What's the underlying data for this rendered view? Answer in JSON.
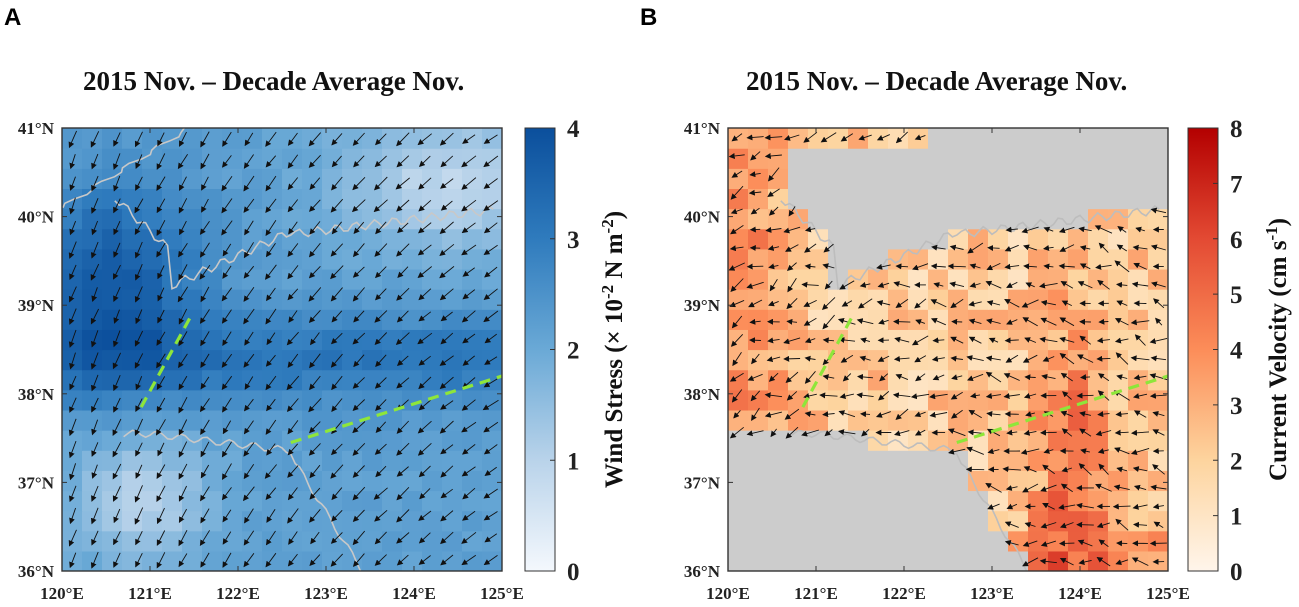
{
  "figure": {
    "panel_a_letter": "A",
    "panel_b_letter": "B"
  },
  "chart_data": [
    {
      "type": "heatmap",
      "subtype": "vector-field",
      "panel": "A",
      "title": "2015 Nov. – Decade Average Nov.",
      "xlabel": "",
      "ylabel": "",
      "xlim": [
        120,
        125
      ],
      "ylim": [
        36,
        41
      ],
      "x_ticks": [
        120,
        121,
        122,
        123,
        124,
        125
      ],
      "y_ticks": [
        36,
        37,
        38,
        39,
        40,
        41
      ],
      "x_tick_labels": [
        "120°E",
        "121°E",
        "122°E",
        "123°E",
        "124°E",
        "125°E"
      ],
      "y_tick_labels": [
        "36°N",
        "37°N",
        "38°N",
        "39°N",
        "40°N",
        "41°N"
      ],
      "colorbar": {
        "label": "Wind Stress (× 10⁻² N m⁻²)",
        "label_main": "Wind Stress (× 10",
        "label_exp1": "-2",
        "label_mid": " N m",
        "label_exp2": "-2",
        "label_end": ")",
        "range": [
          0,
          4
        ],
        "ticks": [
          0,
          1,
          2,
          3,
          4
        ],
        "colors": [
          "#f4f8fd",
          "#b9d3ea",
          "#6aa9d6",
          "#2f7bbd",
          "#0b4f9c"
        ]
      },
      "field_description": "wind stress anomaly, strongest (~3.5-4) over the northwest and central Bohai/Yellow Sea, weaker (~0.5-1.5) in the northeast and south-west; vectors point predominantly south-west",
      "transect_line": [
        [
          120.9,
          37.85
        ],
        [
          121.45,
          38.85
        ]
      ],
      "transect_line_2": [
        [
          122.6,
          37.45
        ],
        [
          125.0,
          38.2
        ]
      ],
      "transect_color": "#8ee63a",
      "background_color": "#ffffff"
    },
    {
      "type": "heatmap",
      "subtype": "vector-field",
      "panel": "B",
      "title": "2015 Nov. – Decade Average Nov.",
      "xlabel": "",
      "ylabel": "",
      "xlim": [
        120,
        125
      ],
      "ylim": [
        36,
        41
      ],
      "x_ticks": [
        120,
        121,
        122,
        123,
        124,
        125
      ],
      "y_ticks": [
        36,
        37,
        38,
        39,
        40,
        41
      ],
      "x_tick_labels": [
        "120°E",
        "121°E",
        "122°E",
        "123°E",
        "124°E",
        "125°E"
      ],
      "y_tick_labels": [
        "36°N",
        "37°N",
        "38°N",
        "39°N",
        "40°N",
        "41°N"
      ],
      "colorbar": {
        "label": "Current Velocity (cm s⁻¹)",
        "label_main": "Current Velocity (cm s",
        "label_exp1": "-1",
        "label_end": ")",
        "range": [
          0,
          8
        ],
        "ticks": [
          0,
          1,
          2,
          3,
          4,
          5,
          6,
          7,
          8
        ],
        "colors": [
          "#fff5eb",
          "#fdd49e",
          "#fc8d59",
          "#e34a33",
          "#b30000"
        ]
      },
      "field_description": "current velocity anomaly over ocean; land masked grey; strongest currents (6-8) along coastal margins and in south-east Yellow Sea; vectors mostly pointing west / north-west in the Yellow Sea",
      "land_color": "#cccccc",
      "transect_line": [
        [
          120.85,
          37.85
        ],
        [
          121.4,
          38.85
        ]
      ],
      "transect_line_2": [
        [
          122.6,
          37.45
        ],
        [
          125.0,
          38.2
        ]
      ],
      "transect_color": "#8ee63a"
    }
  ]
}
